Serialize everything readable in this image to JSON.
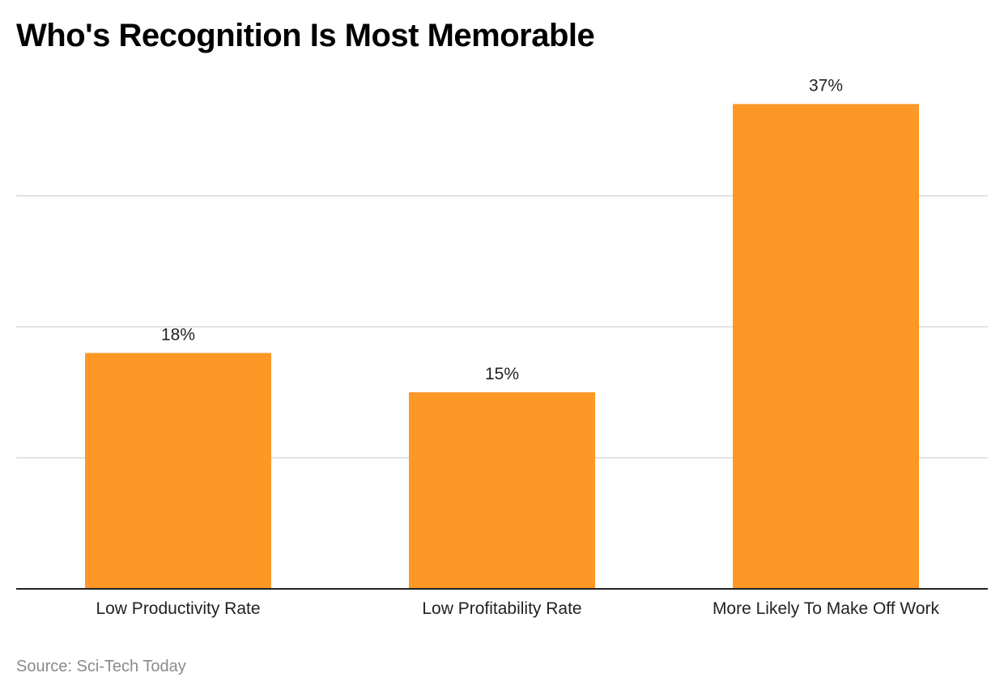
{
  "chart_data": {
    "type": "bar",
    "title": "Who's Recognition Is Most Memorable",
    "categories": [
      "Low Productivity Rate",
      "Low Profitability Rate",
      "More Likely To Make Off Work"
    ],
    "values": [
      18,
      15,
      37
    ],
    "data_labels": [
      "18%",
      "15%",
      "37%"
    ],
    "xlabel": "",
    "ylabel": "",
    "ylim": [
      0,
      40
    ],
    "gridlines": [
      10,
      20,
      30
    ],
    "grid": true,
    "bar_color": "#fd9827",
    "source": "Source: Sci-Tech Today"
  }
}
